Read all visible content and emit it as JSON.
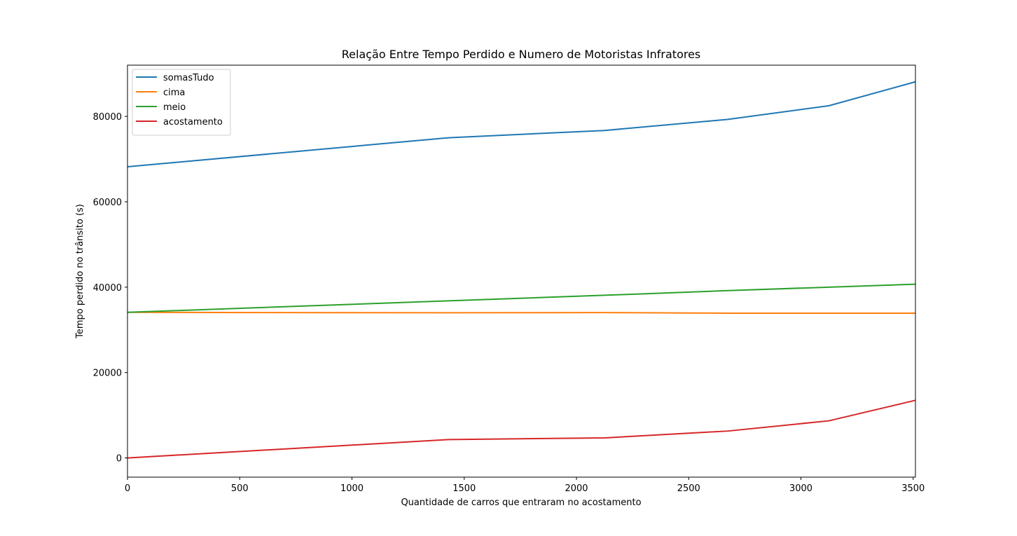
{
  "chart_data": {
    "type": "line",
    "title": "Relação Entre Tempo Perdido e Numero de Motoristas Infratores",
    "xlabel": "Quantidade de carros que entraram no acostamento",
    "ylabel": "Tempo perdido no trânsito (s)",
    "xlim": [
      0,
      3510
    ],
    "ylim": [
      -4500,
      92000
    ],
    "x_ticks": [
      0,
      500,
      1000,
      1500,
      2000,
      2500,
      3000,
      3500
    ],
    "y_ticks": [
      0,
      20000,
      40000,
      60000,
      80000
    ],
    "grid": false,
    "legend_position": "top-left",
    "series": [
      {
        "name": "somasTudo",
        "color": "#1f77b4",
        "x": [
          0,
          1430,
          2125,
          2675,
          3125,
          3510
        ],
        "y": [
          68200,
          75000,
          76700,
          79300,
          82500,
          88100
        ]
      },
      {
        "name": "cima",
        "color": "#ff7f0e",
        "x": [
          0,
          1430,
          2125,
          2675,
          3125,
          3510
        ],
        "y": [
          34100,
          34000,
          34050,
          33900,
          33900,
          33900
        ]
      },
      {
        "name": "meio",
        "color": "#2ca02c",
        "x": [
          0,
          1430,
          2125,
          2675,
          3125,
          3510
        ],
        "y": [
          34100,
          36800,
          38100,
          39200,
          40000,
          40700
        ]
      },
      {
        "name": "acostamento",
        "color": "#d62728",
        "x": [
          0,
          1430,
          2125,
          2675,
          3125,
          3510
        ],
        "y": [
          0,
          4300,
          4700,
          6300,
          8700,
          13500
        ]
      }
    ]
  }
}
